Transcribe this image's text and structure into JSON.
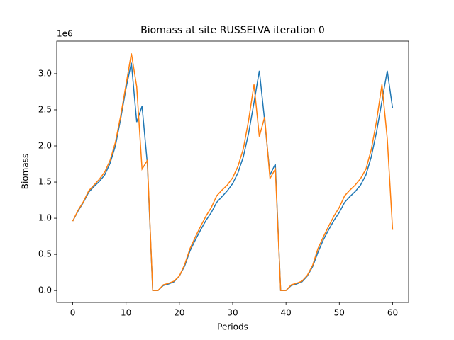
{
  "chart_data": {
    "type": "line",
    "title": "Biomass at site RUSSELVA iteration 0",
    "x_label": "Periods",
    "y_label": "Biomass",
    "y_offset_label": "1e6",
    "x": [
      0,
      1,
      2,
      3,
      4,
      5,
      6,
      7,
      8,
      9,
      10,
      11,
      12,
      13,
      14,
      15,
      16,
      17,
      18,
      19,
      20,
      21,
      22,
      23,
      24,
      25,
      26,
      27,
      28,
      29,
      30,
      31,
      32,
      33,
      34,
      35,
      36,
      37,
      38,
      39,
      40,
      41,
      42,
      43,
      44,
      45,
      46,
      47,
      48,
      49,
      50,
      51,
      52,
      53,
      54,
      55,
      56,
      57,
      58,
      59,
      60
    ],
    "series": [
      {
        "color": "#1f77b4",
        "values": [
          0.96,
          1.1,
          1.22,
          1.36,
          1.44,
          1.51,
          1.6,
          1.76,
          2.0,
          2.38,
          2.8,
          3.15,
          2.33,
          2.55,
          1.75,
          0.0,
          0.0,
          0.07,
          0.09,
          0.12,
          0.2,
          0.34,
          0.55,
          0.7,
          0.84,
          0.97,
          1.08,
          1.22,
          1.3,
          1.38,
          1.48,
          1.63,
          1.85,
          2.18,
          2.6,
          3.04,
          2.35,
          1.6,
          1.75,
          0.0,
          0.0,
          0.07,
          0.09,
          0.12,
          0.2,
          0.33,
          0.53,
          0.7,
          0.84,
          0.97,
          1.08,
          1.22,
          1.3,
          1.37,
          1.46,
          1.6,
          1.85,
          2.2,
          2.62,
          3.04,
          2.52
        ]
      },
      {
        "color": "#ff7f0e",
        "values": [
          0.96,
          1.11,
          1.23,
          1.38,
          1.46,
          1.54,
          1.64,
          1.8,
          2.05,
          2.42,
          2.85,
          3.28,
          2.82,
          1.68,
          1.8,
          0.0,
          0.0,
          0.08,
          0.1,
          0.13,
          0.2,
          0.36,
          0.58,
          0.74,
          0.89,
          1.03,
          1.15,
          1.31,
          1.39,
          1.46,
          1.56,
          1.72,
          1.96,
          2.36,
          2.85,
          2.13,
          2.4,
          1.55,
          1.68,
          0.0,
          0.0,
          0.08,
          0.1,
          0.13,
          0.21,
          0.35,
          0.58,
          0.74,
          0.89,
          1.03,
          1.15,
          1.31,
          1.39,
          1.46,
          1.55,
          1.68,
          1.95,
          2.35,
          2.85,
          2.1,
          0.84
        ]
      }
    ],
    "xlim": [
      -3,
      63
    ],
    "xticks": [
      0,
      10,
      20,
      30,
      40,
      50,
      60
    ],
    "ylim": [
      -0.165,
      3.45
    ],
    "yticks": [
      {
        "value": 0,
        "label": "0.0"
      },
      0.5,
      {
        "value": 1,
        "label": "1.0"
      },
      1.5,
      {
        "value": 2,
        "label": "2.0"
      },
      2.5,
      {
        "value": 3,
        "label": "3.0"
      }
    ],
    "grid": false
  }
}
